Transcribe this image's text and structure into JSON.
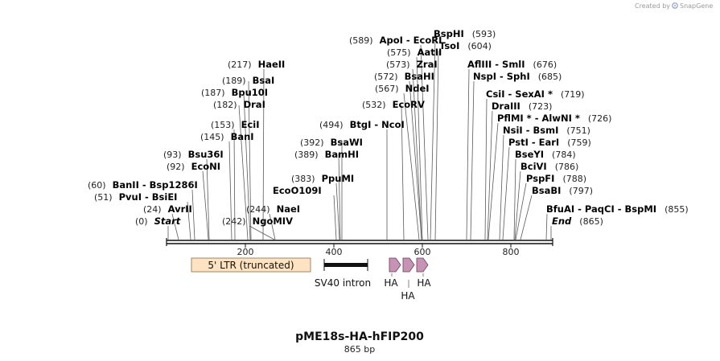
{
  "brand": {
    "created_by": "Created by",
    "name": "SnapGene"
  },
  "title": "pME18s-HA-hFIP200",
  "length_label": "865 bp",
  "ticks": [
    "200",
    "400",
    "600",
    "800"
  ],
  "sites": [
    {
      "label": "(0)",
      "enzymes": [
        "Start"
      ]
    },
    {
      "label": "(24)",
      "enzymes": [
        "AvrII"
      ]
    },
    {
      "label": "(51)",
      "enzymes": [
        "PvuI",
        "BsiEI"
      ]
    },
    {
      "label": "(60)",
      "enzymes": [
        "BanII",
        "Bsp1286I"
      ]
    },
    {
      "label": "(92)",
      "enzymes": [
        "EcoNI"
      ]
    },
    {
      "label": "(93)",
      "enzymes": [
        "Bsu36I"
      ]
    },
    {
      "label": "(145)",
      "enzymes": [
        "BanI"
      ]
    },
    {
      "label": "(153)",
      "enzymes": [
        "EciI"
      ]
    },
    {
      "label": "(182)",
      "enzymes": [
        "DraI"
      ]
    },
    {
      "label": "(187)",
      "enzymes": [
        "Bpu10I"
      ]
    },
    {
      "label": "(189)",
      "enzymes": [
        "BsaI"
      ]
    },
    {
      "label": "(217)",
      "enzymes": [
        "HaeII"
      ]
    },
    {
      "label": "(242)",
      "enzymes": [
        "NgoMIV"
      ]
    },
    {
      "label": "(244)",
      "enzymes": [
        "NaeI"
      ]
    },
    {
      "label": "(383)",
      "enzymes": [
        "PpuMI"
      ]
    },
    {
      "label": "",
      "enzymes": [
        "EcoO109I"
      ]
    },
    {
      "label": "(389)",
      "enzymes": [
        "BamHI"
      ]
    },
    {
      "label": "(392)",
      "enzymes": [
        "BsaWI"
      ]
    },
    {
      "label": "(494)",
      "enzymes": [
        "BtgI",
        "NcoI"
      ]
    },
    {
      "label": "(532)",
      "enzymes": [
        "EcoRV"
      ]
    },
    {
      "label": "(567)",
      "enzymes": [
        "NdeI"
      ]
    },
    {
      "label": "(572)",
      "enzymes": [
        "BsaHI"
      ]
    },
    {
      "label": "(573)",
      "enzymes": [
        "ZraI"
      ]
    },
    {
      "label": "(575)",
      "enzymes": [
        "AatII"
      ]
    },
    {
      "label": "(589)",
      "enzymes": [
        "ApoI",
        "EcoRI"
      ]
    },
    {
      "label": "(593)",
      "enzymes": [
        "BspHI"
      ]
    },
    {
      "label": "(604)",
      "enzymes": [
        "TsoI"
      ]
    },
    {
      "label": "(676)",
      "enzymes": [
        "AflIII",
        "SmlI"
      ]
    },
    {
      "label": "(685)",
      "enzymes": [
        "NspI",
        "SphI"
      ]
    },
    {
      "label": "(719)",
      "enzymes": [
        "CsiI",
        "SexAI *"
      ]
    },
    {
      "label": "(723)",
      "enzymes": [
        "DraIII"
      ]
    },
    {
      "label": "(726)",
      "enzymes": [
        "PflMI *",
        "AlwNI *"
      ]
    },
    {
      "label": "(751)",
      "enzymes": [
        "NsiI",
        "BsmI"
      ]
    },
    {
      "label": "(759)",
      "enzymes": [
        "PstI",
        "EarI"
      ]
    },
    {
      "label": "(784)",
      "enzymes": [
        "BseYI"
      ]
    },
    {
      "label": "(786)",
      "enzymes": [
        "BciVI"
      ]
    },
    {
      "label": "(788)",
      "enzymes": [
        "PspFI"
      ]
    },
    {
      "label": "(797)",
      "enzymes": [
        "BsaBI"
      ]
    },
    {
      "label": "(855)",
      "enzymes": [
        "BfuAI",
        "PaqCI",
        "BspMI"
      ]
    },
    {
      "label": "(865)",
      "enzymes": [
        "End"
      ]
    }
  ],
  "features": [
    {
      "label": "5' LTR (truncated)",
      "start": 54,
      "end": 319,
      "type": "box"
    },
    {
      "label": "SV40 intron",
      "start": 356,
      "end": 459,
      "type": "bar"
    },
    {
      "label": "HA",
      "start": 497,
      "end": 520,
      "type": "arrow"
    },
    {
      "label": "HA",
      "start": 527,
      "end": 550,
      "type": "arrow"
    },
    {
      "label": "HA",
      "start": 557,
      "end": 580,
      "type": "arrow"
    }
  ]
}
